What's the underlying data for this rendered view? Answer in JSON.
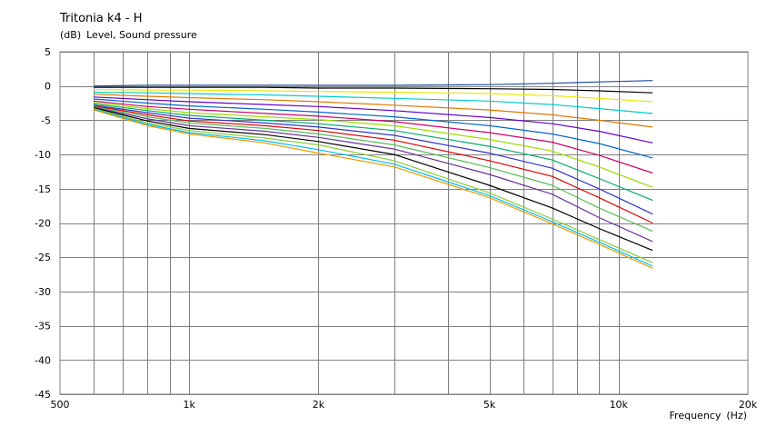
{
  "chart_data": {
    "type": "line",
    "title": "Tritonia k4 - H",
    "ylabel_unit": "(dB)",
    "ylabel": "Level, Sound pressure",
    "xlabel": "Frequency",
    "xlabel_unit": "(Hz)",
    "x_scale": "log",
    "xlim": [
      500,
      20000
    ],
    "ylim": [
      -45,
      5
    ],
    "x_ticks": [
      {
        "value": 500,
        "label": "500"
      },
      {
        "value": 1000,
        "label": "1k"
      },
      {
        "value": 2000,
        "label": "2k"
      },
      {
        "value": 5000,
        "label": "5k"
      },
      {
        "value": 10000,
        "label": "10k"
      },
      {
        "value": 20000,
        "label": "20k"
      }
    ],
    "y_ticks": [
      5,
      0,
      -5,
      -10,
      -15,
      -20,
      -25,
      -30,
      -35,
      -40,
      -45
    ],
    "x_gridlines": [
      600,
      700,
      800,
      900,
      1000,
      2000,
      3000,
      4000,
      5000,
      6000,
      7000,
      8000,
      9000,
      10000
    ],
    "grid": true,
    "legend": "none",
    "x": [
      600,
      800,
      1000,
      1500,
      2000,
      3000,
      5000,
      7000,
      9000,
      12000
    ],
    "series": [
      {
        "color": "#1f4fa0",
        "values": [
          0.0,
          0.1,
          0.1,
          0.1,
          0.1,
          0.1,
          0.2,
          0.4,
          0.6,
          0.8
        ]
      },
      {
        "color": "#000000",
        "values": [
          -0.2,
          -0.2,
          -0.2,
          -0.2,
          -0.3,
          -0.3,
          -0.4,
          -0.5,
          -0.7,
          -1.0
        ]
      },
      {
        "color": "#e8e800",
        "values": [
          -0.5,
          -0.6,
          -0.6,
          -0.7,
          -0.8,
          -0.9,
          -1.1,
          -1.4,
          -1.8,
          -2.3
        ]
      },
      {
        "color": "#00cccc",
        "values": [
          -0.9,
          -1.0,
          -1.1,
          -1.3,
          -1.5,
          -1.8,
          -2.2,
          -2.7,
          -3.3,
          -4.0
        ]
      },
      {
        "color": "#e07800",
        "values": [
          -1.2,
          -1.5,
          -1.7,
          -2.0,
          -2.3,
          -2.8,
          -3.5,
          -4.2,
          -5.0,
          -6.0
        ]
      },
      {
        "color": "#6600cc",
        "values": [
          -1.6,
          -2.0,
          -2.3,
          -2.7,
          -3.0,
          -3.6,
          -4.6,
          -5.5,
          -6.6,
          -8.3
        ]
      },
      {
        "color": "#0066cc",
        "values": [
          -1.9,
          -2.5,
          -2.9,
          -3.4,
          -3.8,
          -4.5,
          -5.8,
          -7.0,
          -8.4,
          -10.5
        ]
      },
      {
        "color": "#cc0066",
        "values": [
          -2.2,
          -3.0,
          -3.4,
          -4.0,
          -4.4,
          -5.2,
          -6.8,
          -8.2,
          -10.1,
          -12.7
        ]
      },
      {
        "color": "#99dd00",
        "values": [
          -2.4,
          -3.3,
          -3.9,
          -4.5,
          -4.9,
          -5.8,
          -7.8,
          -9.5,
          -11.8,
          -14.8
        ]
      },
      {
        "color": "#00aa66",
        "values": [
          -2.6,
          -3.6,
          -4.3,
          -5.0,
          -5.5,
          -6.5,
          -8.8,
          -10.8,
          -13.5,
          -16.7
        ]
      },
      {
        "color": "#3333cc",
        "values": [
          -2.8,
          -3.9,
          -4.7,
          -5.4,
          -6.0,
          -7.2,
          -9.8,
          -12.0,
          -15.0,
          -18.7
        ]
      },
      {
        "color": "#dd0000",
        "values": [
          -2.9,
          -4.2,
          -5.1,
          -5.8,
          -6.5,
          -7.9,
          -10.9,
          -13.2,
          -16.3,
          -20.0
        ]
      },
      {
        "color": "#55bb55",
        "values": [
          -3.0,
          -4.5,
          -5.4,
          -6.2,
          -7.0,
          -8.6,
          -11.9,
          -14.5,
          -17.8,
          -21.2
        ]
      },
      {
        "color": "#663399",
        "values": [
          -3.1,
          -4.8,
          -5.8,
          -6.6,
          -7.5,
          -9.2,
          -12.9,
          -15.8,
          -19.2,
          -22.7
        ]
      },
      {
        "color": "#000000",
        "values": [
          -3.2,
          -5.1,
          -6.2,
          -7.1,
          -8.1,
          -10.0,
          -14.5,
          -17.8,
          -20.8,
          -24.0
        ]
      },
      {
        "color": "#88cc33",
        "values": [
          -3.3,
          -5.4,
          -6.5,
          -7.6,
          -8.6,
          -10.9,
          -15.6,
          -19.4,
          -22.4,
          -25.8
        ]
      },
      {
        "color": "#00bbee",
        "values": [
          -3.4,
          -5.6,
          -6.8,
          -8.0,
          -9.3,
          -11.4,
          -16.0,
          -19.8,
          -22.8,
          -26.3
        ]
      },
      {
        "color": "#ee9900",
        "values": [
          -3.5,
          -5.8,
          -7.0,
          -8.3,
          -9.8,
          -11.8,
          -16.3,
          -20.1,
          -23.1,
          -26.6
        ]
      }
    ]
  }
}
